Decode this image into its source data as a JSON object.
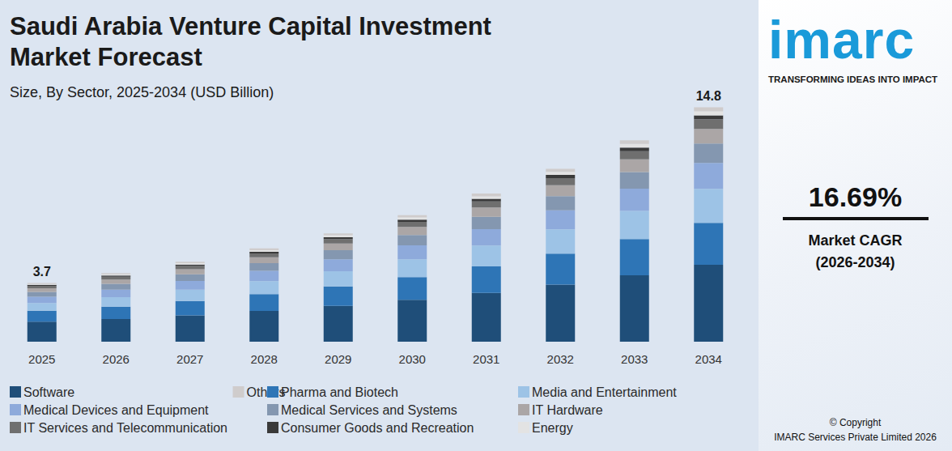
{
  "chart_data": {
    "type": "bar",
    "stacked": true,
    "title": "Saudi Arabia Venture Capital Investment Market Forecast",
    "subtitle": "Size, By Sector, 2025-2034 (USD Billion)",
    "categories": [
      "2025",
      "2026",
      "2027",
      "2028",
      "2029",
      "2030",
      "2031",
      "2032",
      "2033",
      "2034"
    ],
    "series": [
      {
        "name": "Software",
        "color": "#1f4e79",
        "values": [
          1.26,
          1.43,
          1.66,
          1.94,
          2.26,
          2.64,
          3.08,
          3.6,
          4.19,
          4.85
        ]
      },
      {
        "name": "Pharma and Biotech",
        "color": "#2e75b6",
        "values": [
          0.7,
          0.78,
          0.91,
          1.06,
          1.23,
          1.44,
          1.68,
          1.96,
          2.29,
          2.65
        ]
      },
      {
        "name": "Media and Entertainment",
        "color": "#9dc3e6",
        "values": [
          0.48,
          0.6,
          0.71,
          0.82,
          0.96,
          1.12,
          1.31,
          1.53,
          1.78,
          2.15
        ]
      },
      {
        "name": "Medical Devices and Equipment",
        "color": "#8eaadb",
        "values": [
          0.4,
          0.48,
          0.55,
          0.65,
          0.75,
          0.88,
          1.03,
          1.2,
          1.4,
          1.63
        ]
      },
      {
        "name": "Medical Services and Systems",
        "color": "#8497b0",
        "values": [
          0.3,
          0.36,
          0.42,
          0.49,
          0.57,
          0.66,
          0.78,
          0.9,
          1.05,
          1.23
        ]
      },
      {
        "name": "IT Hardware",
        "color": "#aba6a6",
        "values": [
          0.24,
          0.27,
          0.32,
          0.37,
          0.43,
          0.5,
          0.59,
          0.69,
          0.8,
          0.92
        ]
      },
      {
        "name": "IT Services and Telecommunication",
        "color": "#6f6f6f",
        "values": [
          0.15,
          0.18,
          0.21,
          0.24,
          0.28,
          0.33,
          0.38,
          0.45,
          0.52,
          0.61
        ]
      },
      {
        "name": "Consumer Goods and Recreation",
        "color": "#3a3a3a",
        "values": [
          0.06,
          0.08,
          0.09,
          0.11,
          0.12,
          0.14,
          0.17,
          0.2,
          0.23,
          0.25
        ]
      },
      {
        "name": "Energy",
        "color": "#e3e3e3",
        "values": [
          0.05,
          0.07,
          0.09,
          0.1,
          0.12,
          0.14,
          0.16,
          0.19,
          0.22,
          0.25
        ]
      },
      {
        "name": "Others",
        "color": "#cfcccc",
        "values": [
          0.06,
          0.08,
          0.09,
          0.11,
          0.12,
          0.14,
          0.17,
          0.2,
          0.23,
          0.26
        ]
      }
    ],
    "totals": [
      {
        "category": "2025",
        "value": 3.7
      },
      {
        "category": "2034",
        "value": 14.8
      }
    ],
    "ylim": [
      0,
      16
    ],
    "grid": false,
    "tick_labels": "x",
    "legend": "bottom"
  },
  "side_panel": {
    "logo": "imarc",
    "tagline": "TRANSFORMING IDEAS INTO IMPACT",
    "cagr": "16.69%",
    "cagr_label": "Market CAGR",
    "cagr_period": "(2026-2034)",
    "copyright": [
      "© Copyright",
      "IMARC Services Private Limited 2026"
    ]
  }
}
